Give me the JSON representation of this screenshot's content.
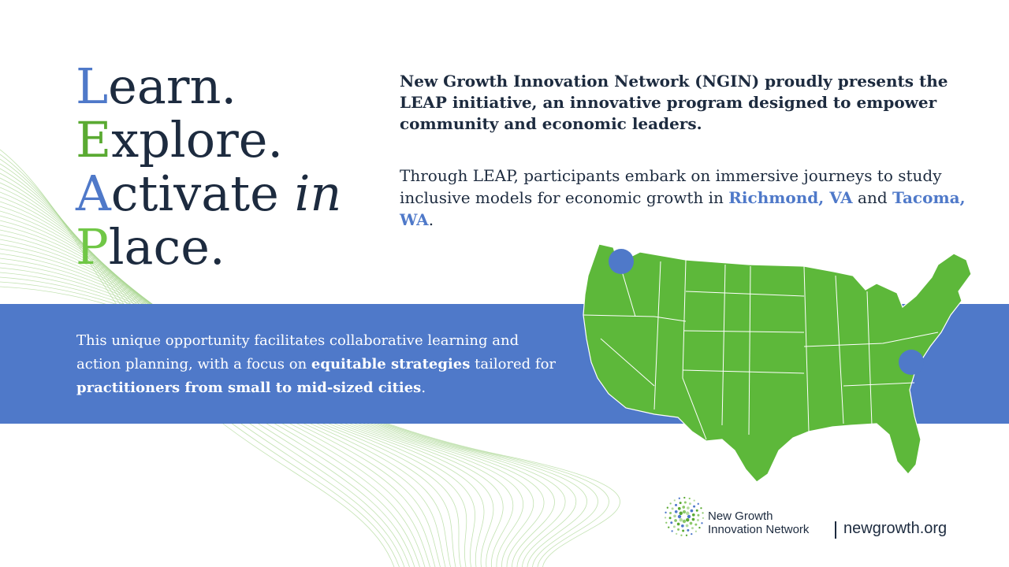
{
  "headline": {
    "line1": {
      "initial": "L",
      "rest": "earn."
    },
    "line2": {
      "initial": "E",
      "rest": "xplore."
    },
    "line3": {
      "initial": "A",
      "rest": "ctivate ",
      "italic": "in"
    },
    "line4": {
      "initial": "P",
      "rest": "lace."
    }
  },
  "intro": "New Growth Innovation Network (NGIN) proudly presents the LEAP initiative, an innovative program designed to empower community and economic leaders.",
  "journey": {
    "text_before": "Through LEAP, participants embark on immersive journeys to study inclusive models for economic growth in ",
    "city1": "Richmond, VA",
    "text_mid": " and ",
    "city2": "Tacoma, WA",
    "text_end": "."
  },
  "opportunity": {
    "part1": "This unique opportunity facilitates collaborative learning and action planning, with a focus on ",
    "bold1": "equitable strategies",
    "part2": " tailored for ",
    "bold2": "practitioners from small to mid-sized cities",
    "part3": "."
  },
  "logo": {
    "name_line1": "New Growth",
    "name_line2": "Innovation Network",
    "url": "newgrowth.org"
  },
  "map": {
    "markers": [
      "Tacoma, WA",
      "Richmond, VA"
    ],
    "land_color": "#5db83a",
    "marker_color": "#4f79c9"
  },
  "colors": {
    "accent_blue": "#4f79c9",
    "accent_green": "#5aaa32",
    "light_green": "#70c746",
    "text_dark": "#1d2b3f",
    "band": "#4f79c9"
  }
}
